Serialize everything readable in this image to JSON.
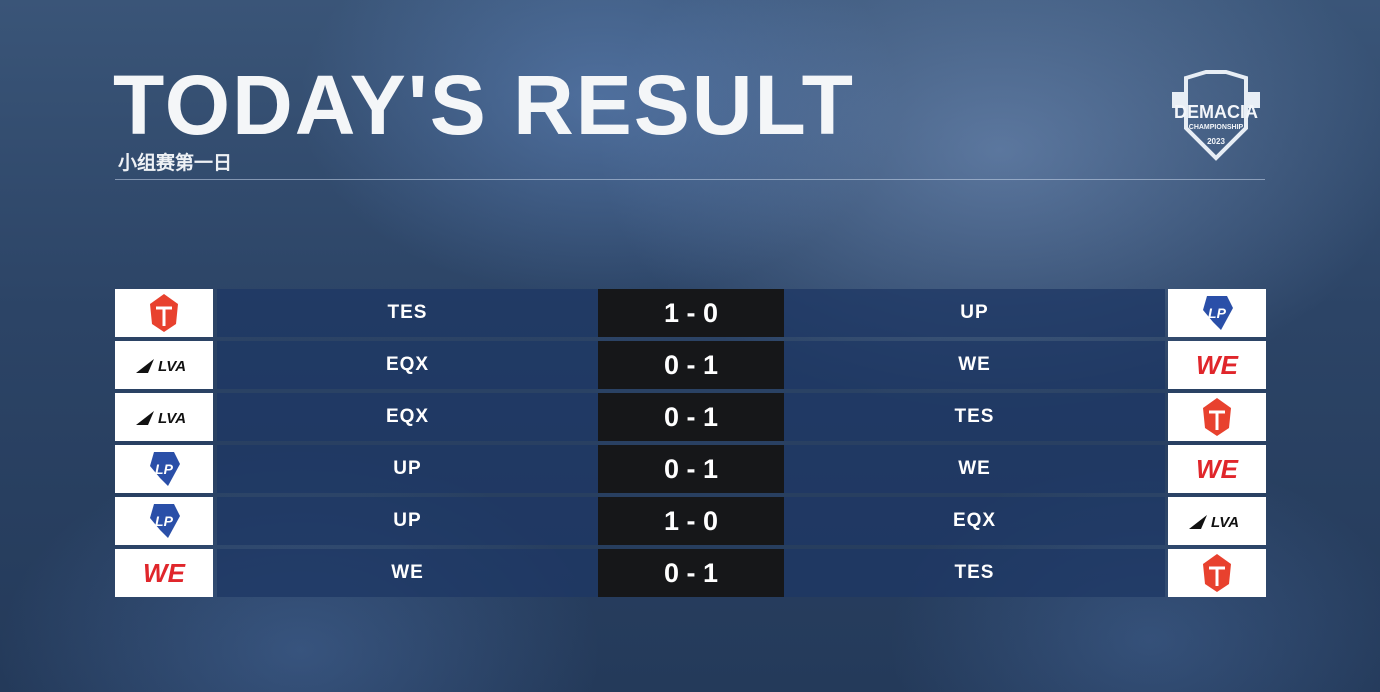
{
  "header": {
    "title": "TODAY'S RESULT",
    "subtitle": "小组赛第一日"
  },
  "logo": {
    "text": "DEMACIA",
    "sub": "CHAMPIONSHIP",
    "year": "2023"
  },
  "teams": {
    "TES": {
      "icon": "tes-logo",
      "color": "#e8412e"
    },
    "UP": {
      "icon": "up-logo",
      "color": "#2a4fa8"
    },
    "EQX": {
      "icon": "lva-logo",
      "color": "#111111",
      "text": "LVA"
    },
    "WE": {
      "icon": "we-logo",
      "color": "#e0262b",
      "text": "WE"
    }
  },
  "matches": [
    {
      "home": "TES",
      "score": "1 - 0",
      "away": "UP"
    },
    {
      "home": "EQX",
      "score": "0 - 1",
      "away": "WE"
    },
    {
      "home": "EQX",
      "score": "0 - 1",
      "away": "TES"
    },
    {
      "home": "UP",
      "score": "0 - 1",
      "away": "WE"
    },
    {
      "home": "UP",
      "score": "1 - 0",
      "away": "EQX"
    },
    {
      "home": "WE",
      "score": "0 - 1",
      "away": "TES"
    }
  ]
}
